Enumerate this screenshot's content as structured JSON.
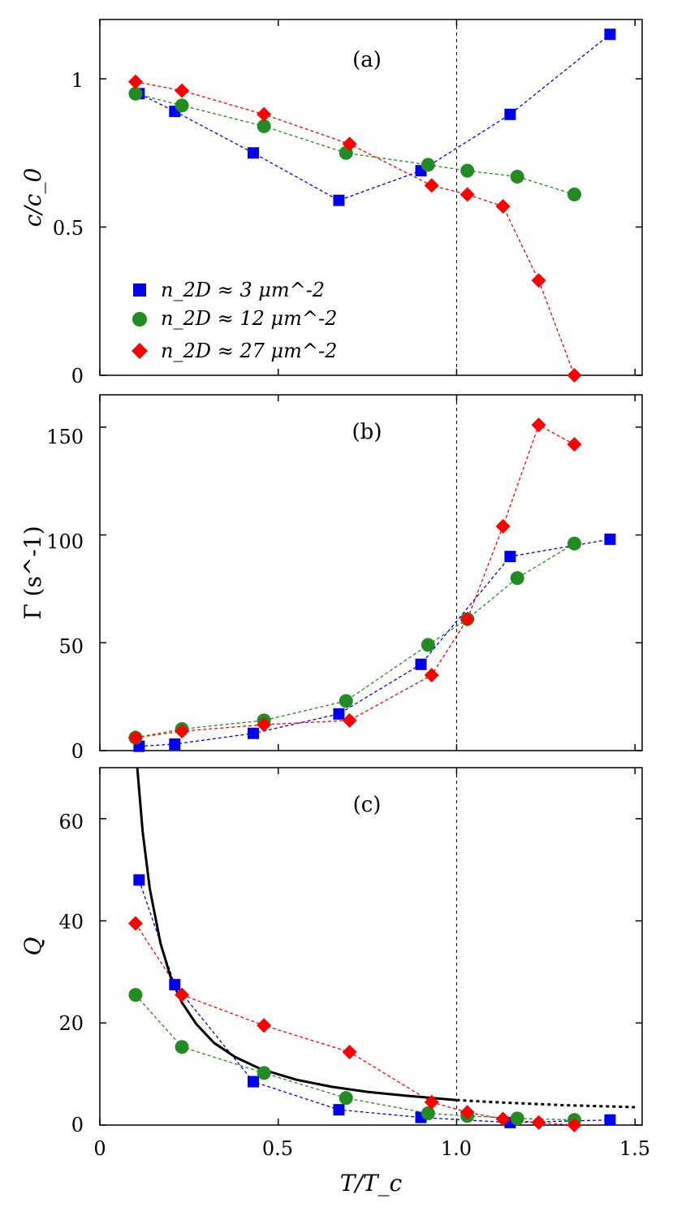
{
  "figure": {
    "xlabel": "T/T_c",
    "x_ticks": [
      "0",
      "0.5",
      "1.0",
      "1.5"
    ]
  },
  "legend": [
    {
      "label": "n_2D ≈ 3 μm^-2",
      "marker": "square",
      "color": "#0000ee"
    },
    {
      "label": "n_2D ≈ 12 μm^-2",
      "marker": "circle",
      "color": "#228b22"
    },
    {
      "label": "n_2D ≈ 27 μm^-2",
      "marker": "diamond",
      "color": "#ff0000"
    }
  ],
  "panels": [
    {
      "label": "(a)",
      "ylabel": "c/c_0",
      "yticks": [
        "0",
        "0.5",
        "1"
      ]
    },
    {
      "label": "(b)",
      "ylabel": "Γ (s^-1)",
      "yticks": [
        "0",
        "50",
        "100",
        "150"
      ]
    },
    {
      "label": "(c)",
      "ylabel": "Q",
      "yticks": [
        "0",
        "20",
        "40",
        "60"
      ]
    }
  ],
  "chart_data": [
    {
      "type": "scatter",
      "title": "(a)",
      "xlabel": "",
      "ylabel": "c/c_0",
      "xlim": [
        0,
        1.52
      ],
      "ylim": [
        0,
        1.2
      ],
      "reference_line_x": 1.0,
      "series": [
        {
          "name": "n_2D ≈ 3 μm^-2",
          "color": "#0000ee",
          "marker": "square",
          "x": [
            0.11,
            0.21,
            0.43,
            0.67,
            0.9,
            1.15,
            1.43
          ],
          "y": [
            0.95,
            0.89,
            0.75,
            0.59,
            0.69,
            0.88,
            1.15
          ]
        },
        {
          "name": "n_2D ≈ 12 μm^-2",
          "color": "#228b22",
          "marker": "circle",
          "x": [
            0.1,
            0.23,
            0.46,
            0.69,
            0.92,
            1.03,
            1.17,
            1.33
          ],
          "y": [
            0.95,
            0.91,
            0.84,
            0.75,
            0.71,
            0.69,
            0.67,
            0.61
          ]
        },
        {
          "name": "n_2D ≈ 27 μm^-2",
          "color": "#ff0000",
          "marker": "diamond",
          "x": [
            0.1,
            0.23,
            0.46,
            0.7,
            0.93,
            1.03,
            1.13,
            1.23,
            1.33
          ],
          "y": [
            0.99,
            0.96,
            0.88,
            0.78,
            0.64,
            0.61,
            0.57,
            0.32,
            0.0
          ]
        }
      ]
    },
    {
      "type": "scatter",
      "title": "(b)",
      "xlabel": "",
      "ylabel": "Γ (s^-1)",
      "xlim": [
        0,
        1.52
      ],
      "ylim": [
        0,
        165
      ],
      "reference_line_x": 1.0,
      "series": [
        {
          "name": "n_2D ≈ 3 μm^-2",
          "color": "#0000ee",
          "marker": "square",
          "x": [
            0.11,
            0.21,
            0.43,
            0.67,
            0.9,
            1.15,
            1.43
          ],
          "y": [
            2,
            3,
            8,
            17,
            40,
            90,
            98
          ]
        },
        {
          "name": "n_2D ≈ 12 μm^-2",
          "color": "#228b22",
          "marker": "circle",
          "x": [
            0.1,
            0.23,
            0.46,
            0.69,
            0.92,
            1.03,
            1.17,
            1.33
          ],
          "y": [
            6,
            10,
            14,
            23,
            49,
            61,
            80,
            96
          ]
        },
        {
          "name": "n_2D ≈ 27 μm^-2",
          "color": "#ff0000",
          "marker": "diamond",
          "x": [
            0.1,
            0.23,
            0.46,
            0.7,
            0.93,
            1.03,
            1.13,
            1.23,
            1.33
          ],
          "y": [
            6,
            9,
            12,
            14,
            35,
            61,
            104,
            151,
            142
          ]
        }
      ]
    },
    {
      "type": "scatter",
      "title": "(c)",
      "xlabel": "T/T_c",
      "ylabel": "Q",
      "xlim": [
        0,
        1.52
      ],
      "ylim": [
        0,
        70
      ],
      "reference_line_x": 1.0,
      "series": [
        {
          "name": "n_2D ≈ 3 μm^-2",
          "color": "#0000ee",
          "marker": "square",
          "x": [
            0.11,
            0.21,
            0.43,
            0.67,
            0.9,
            1.15,
            1.43
          ],
          "y": [
            48,
            27.5,
            8.5,
            3.0,
            1.5,
            0.5,
            1.0
          ]
        },
        {
          "name": "n_2D ≈ 12 μm^-2",
          "color": "#228b22",
          "marker": "circle",
          "x": [
            0.1,
            0.23,
            0.46,
            0.69,
            0.92,
            1.03,
            1.17,
            1.33
          ],
          "y": [
            25.5,
            15.3,
            10.2,
            5.3,
            2.3,
            1.8,
            1.3,
            1.0
          ]
        },
        {
          "name": "n_2D ≈ 27 μm^-2",
          "color": "#ff0000",
          "marker": "diamond",
          "x": [
            0.1,
            0.23,
            0.46,
            0.7,
            0.93,
            1.03,
            1.13,
            1.23,
            1.33
          ],
          "y": [
            39.5,
            25.5,
            19.5,
            14.3,
            4.5,
            2.5,
            1.2,
            0.5,
            0.0
          ]
        }
      ],
      "curve": {
        "x": [
          0.105,
          0.12,
          0.14,
          0.17,
          0.2,
          0.23,
          0.27,
          0.32,
          0.38,
          0.45,
          0.55,
          0.65,
          0.75,
          0.85,
          1.0
        ],
        "y": [
          70,
          57.5,
          46.3,
          35.6,
          28.6,
          24.0,
          19.8,
          16.1,
          13.3,
          11.0,
          8.9,
          7.5,
          6.5,
          5.8,
          4.9
        ]
      },
      "curve_extension": {
        "x": [
          1.0,
          1.1,
          1.2,
          1.3,
          1.4,
          1.5
        ],
        "y": [
          4.9,
          4.5,
          4.2,
          3.9,
          3.7,
          3.5
        ]
      }
    }
  ]
}
